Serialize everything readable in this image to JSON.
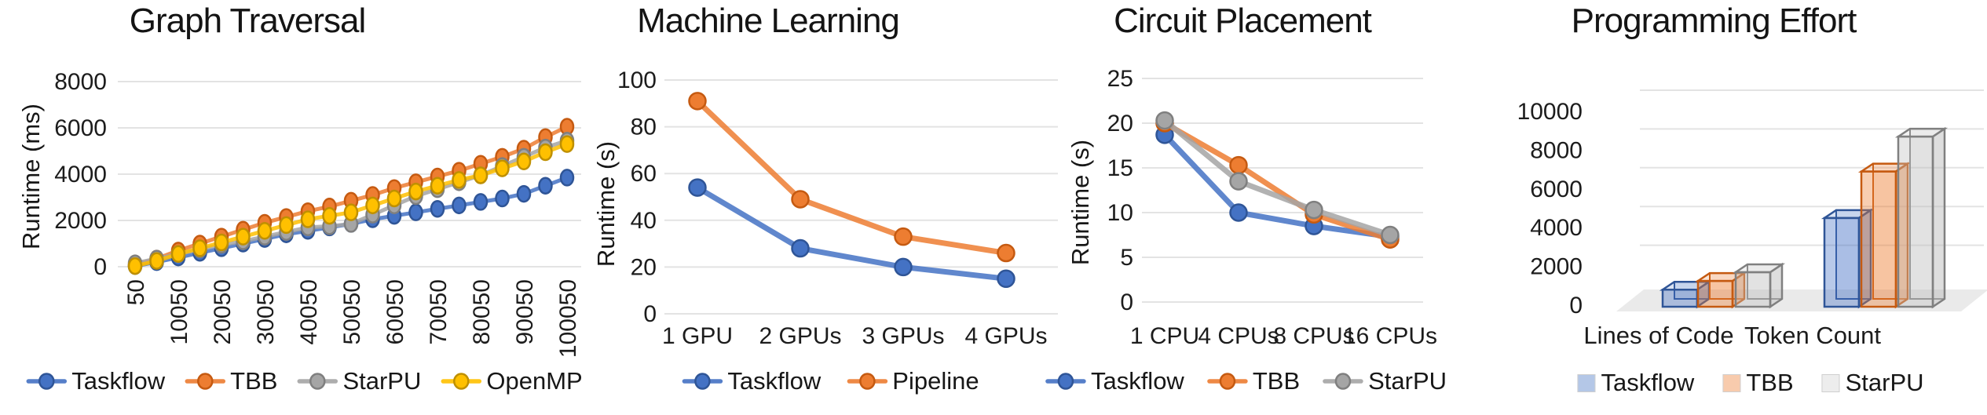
{
  "figure": {
    "background": "#ffffff",
    "grid_color": "#e3e3e3"
  },
  "chart_data": [
    {
      "type": "line",
      "title": "Graph Traversal",
      "ylabel": "Runtime (ms)",
      "ylim": [
        0,
        8000
      ],
      "yticks": [
        0,
        2000,
        4000,
        6000,
        8000
      ],
      "x": [
        50,
        5050,
        10050,
        15050,
        20050,
        25050,
        30050,
        35050,
        40050,
        45050,
        50050,
        55050,
        60050,
        65050,
        70050,
        75050,
        80050,
        85050,
        90050,
        95050,
        100050
      ],
      "xtick_labels": [
        "50",
        "10050",
        "20050",
        "30050",
        "40050",
        "50050",
        "60050",
        "70050",
        "80050",
        "90050",
        "100050"
      ],
      "legend_position": "bottom",
      "grid": true,
      "series": [
        {
          "name": "Taskflow",
          "color": "#4472C4",
          "edge": "#2F5597",
          "values": [
            30,
            200,
            400,
            600,
            800,
            1000,
            1200,
            1400,
            1550,
            1700,
            1850,
            2050,
            2200,
            2350,
            2500,
            2650,
            2800,
            2950,
            3150,
            3500,
            3850
          ]
        },
        {
          "name": "TBB",
          "color": "#ED7D31",
          "edge": "#C55A11",
          "values": [
            60,
            350,
            700,
            1000,
            1300,
            1600,
            1900,
            2150,
            2400,
            2600,
            2850,
            3100,
            3400,
            3650,
            3900,
            4150,
            4450,
            4750,
            5100,
            5600,
            6050
          ]
        },
        {
          "name": "StarPU",
          "color": "#A5A5A5",
          "edge": "#7F7F7F",
          "values": [
            150,
            350,
            550,
            750,
            950,
            1100,
            1300,
            1500,
            1700,
            1750,
            1850,
            2250,
            2650,
            3050,
            3350,
            3650,
            3950,
            4350,
            4750,
            5150,
            5450
          ]
        },
        {
          "name": "OpenMP",
          "color": "#FFC000",
          "edge": "#BF9000",
          "values": [
            30,
            250,
            550,
            800,
            1050,
            1300,
            1550,
            1800,
            2050,
            2200,
            2350,
            2650,
            2950,
            3250,
            3500,
            3750,
            3950,
            4250,
            4550,
            4950,
            5300
          ]
        }
      ]
    },
    {
      "type": "line",
      "title": "Machine Learning",
      "ylabel": "Runtime (s)",
      "ylim": [
        0,
        100
      ],
      "yticks": [
        0,
        20,
        40,
        60,
        80,
        100
      ],
      "x": [
        "1 GPU",
        "2 GPUs",
        "3 GPUs",
        "4 GPUs"
      ],
      "legend_position": "bottom",
      "grid": true,
      "series": [
        {
          "name": "Taskflow",
          "color": "#4472C4",
          "edge": "#2F5597",
          "values": [
            54,
            28,
            20,
            15
          ]
        },
        {
          "name": "Pipeline",
          "color": "#ED7D31",
          "edge": "#C55A11",
          "values": [
            91,
            49,
            33,
            26
          ]
        }
      ]
    },
    {
      "type": "line",
      "title": "Circuit Placement",
      "ylabel": "Runtime (s)",
      "ylim": [
        0,
        25
      ],
      "yticks": [
        0,
        5,
        10,
        15,
        20,
        25
      ],
      "x": [
        "1 CPU",
        "4 CPUs",
        "8 CPUs",
        "16 CPUs"
      ],
      "legend_position": "bottom",
      "grid": true,
      "series": [
        {
          "name": "Taskflow",
          "color": "#4472C4",
          "edge": "#2F5597",
          "values": [
            18.7,
            10,
            8.5,
            7.3
          ]
        },
        {
          "name": "TBB",
          "color": "#ED7D31",
          "edge": "#C55A11",
          "values": [
            20,
            15.3,
            9.8,
            7
          ]
        },
        {
          "name": "StarPU",
          "color": "#A5A5A5",
          "edge": "#7F7F7F",
          "values": [
            20.3,
            13.5,
            10.3,
            7.5
          ]
        }
      ]
    },
    {
      "type": "bar3d",
      "title": "Programming Effort",
      "ylabel": "",
      "ylim": [
        0,
        10000
      ],
      "yticks": [
        0,
        2000,
        4000,
        6000,
        8000,
        10000
      ],
      "categories": [
        "Lines of Code",
        "Token Count"
      ],
      "legend_position": "bottom",
      "grid": true,
      "series": [
        {
          "name": "Taskflow",
          "color": "#4472C4",
          "edge": "#2F5597",
          "legend_fill": "#B4C7E7",
          "values": [
            800,
            4500
          ]
        },
        {
          "name": "TBB",
          "color": "#ED7D31",
          "edge": "#C55A11",
          "legend_fill": "#F8CBAD",
          "values": [
            1250,
            6900
          ]
        },
        {
          "name": "StarPU",
          "color": "#BFBFBF",
          "edge": "#808080",
          "legend_fill": "#EDEDED",
          "values": [
            1700,
            8700
          ]
        }
      ]
    }
  ]
}
